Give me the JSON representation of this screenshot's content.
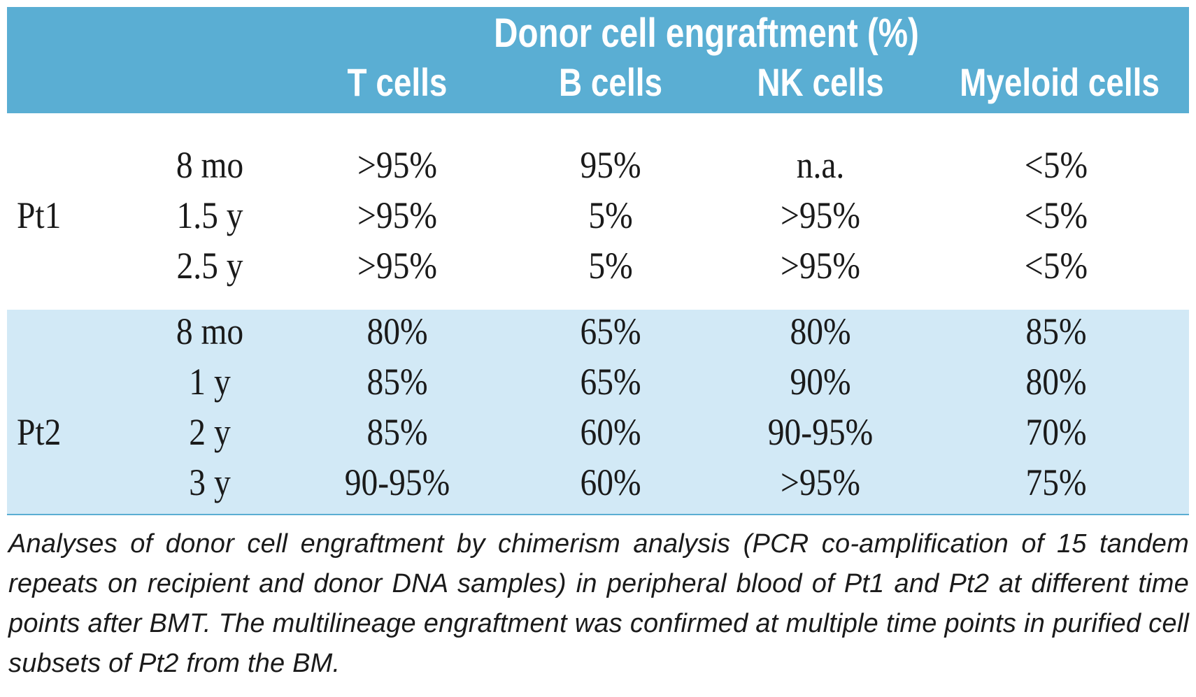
{
  "table": {
    "group_header": "Donor cell engraftment (%)",
    "columns": [
      "T cells",
      "B cells",
      "NK cells",
      "Myeloid cells"
    ],
    "groups": [
      {
        "patient": "Pt1",
        "rows": [
          {
            "time": "8 mo",
            "values": [
              ">95%",
              "95%",
              "n.a.",
              "<5%"
            ]
          },
          {
            "time": "1.5 y",
            "values": [
              ">95%",
              "5%",
              ">95%",
              "<5%"
            ]
          },
          {
            "time": "2.5 y",
            "values": [
              ">95%",
              "5%",
              ">95%",
              "<5%"
            ]
          }
        ]
      },
      {
        "patient": "Pt2",
        "rows": [
          {
            "time": "8 mo",
            "values": [
              "80%",
              "65%",
              "80%",
              "85%"
            ]
          },
          {
            "time": "1 y",
            "values": [
              "85%",
              "65%",
              "90%",
              "80%"
            ]
          },
          {
            "time": "2 y",
            "values": [
              "85%",
              "60%",
              "90-95%",
              "70%"
            ]
          },
          {
            "time": "3 y",
            "values": [
              "90-95%",
              "60%",
              ">95%",
              "75%"
            ]
          }
        ]
      }
    ],
    "caption": "Analyses of donor cell engraftment by chimerism analysis (PCR co-amplification of 15 tandem repeats on recipient and donor DNA samples) in peripheral blood of Pt1 and Pt2 at different time points after BMT. The multilineage engraftment was confirmed at multiple time points in purified cell subsets of Pt2 from the BM."
  },
  "colors": {
    "header_bg": "#5aaed3",
    "pt2_band_bg": "#d2e9f6",
    "header_text": "#ffffff"
  }
}
